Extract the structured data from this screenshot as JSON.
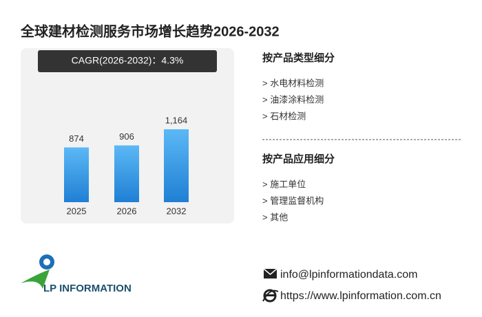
{
  "chart_data": {
    "type": "bar",
    "title": "全球建材检测服务市场增长趋势2026-2032",
    "annotation": "CAGR(2026-2032)：4.3%",
    "categories": [
      "2025",
      "2026",
      "2032"
    ],
    "values": [
      874,
      906,
      1164
    ],
    "value_labels": [
      "874",
      "906",
      "1,164"
    ],
    "color": "#1f7fd4"
  },
  "segments": [
    {
      "title": "按产品类型细分",
      "items": [
        "> 水电材料检测",
        "> 油漆涂料检测",
        "> 石材检测"
      ]
    },
    {
      "title": "按产品应用细分",
      "items": [
        "> 施工单位",
        "> 管理监督机构",
        "> 其他"
      ]
    }
  ],
  "contact": {
    "email": "info@lpinformationdata.com",
    "website": "https://www.lpinformation.com.cn"
  },
  "logo": {
    "text": "LP INFORMATION"
  }
}
